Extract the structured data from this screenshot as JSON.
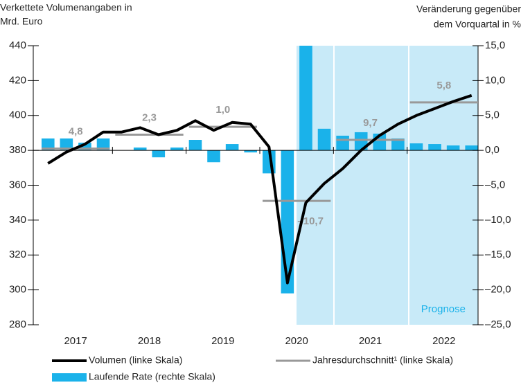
{
  "chart_data": {
    "type": "bar-line",
    "y_title_lines": [
      "Verkettete Volumenangaben in",
      "Mrd. Euro"
    ],
    "y2_title_lines": [
      "Veränderung gegenüber",
      "dem Vorquartal in %"
    ],
    "categories": [
      "2017",
      "2018",
      "2019",
      "2020",
      "2021",
      "2022"
    ],
    "forecast_label": "Prognose",
    "ylim": [
      280,
      440
    ],
    "yticks": [
      280,
      300,
      320,
      340,
      360,
      380,
      400,
      420,
      440
    ],
    "y2lim": [
      -25,
      15
    ],
    "y2ticks": [
      {
        "value": -25,
        "label": "–25,0"
      },
      {
        "value": -20,
        "label": "–20,0"
      },
      {
        "value": -15,
        "label": "–15,0"
      },
      {
        "value": -10,
        "label": "–10,0"
      },
      {
        "value": -5,
        "label": "–5,0"
      },
      {
        "value": 0,
        "label": "0,0"
      },
      {
        "value": 5,
        "label": "5,0"
      },
      {
        "value": 10,
        "label": "10,0"
      },
      {
        "value": 15,
        "label": "15,0"
      }
    ],
    "series": [
      {
        "name": "Volumen (linke Skala)",
        "type": "line",
        "color": "#000000",
        "values": [
          [
            372.5,
            379,
            383.5,
            390.5
          ],
          [
            390.5,
            393,
            389,
            391.5
          ],
          [
            397,
            391.5,
            396,
            395
          ],
          [
            382,
            304,
            350,
            361
          ],
          [
            369.5,
            380,
            388.5,
            395
          ],
          [
            400,
            404,
            408,
            411.5
          ]
        ]
      },
      {
        "name": "Jahresdurchschnitt¹ (linke Skala)",
        "type": "average",
        "color": "#999999",
        "values": [
          381,
          389,
          393.5,
          351,
          386,
          407.5
        ],
        "value_labels": [
          "4,8",
          "2,3",
          "1,0",
          "–10,7",
          "9,7",
          "5,8"
        ]
      },
      {
        "name": "Laufende Rate (rechte Skala)",
        "type": "bar",
        "axis": "y2",
        "color": "#1ab2ea",
        "values": [
          [
            1.7,
            1.7,
            1.1,
            1.7
          ],
          [
            0.0,
            0.4,
            -1.0,
            0.4
          ],
          [
            1.5,
            -1.7,
            0.9,
            -0.3
          ],
          [
            -3.3,
            -20.5,
            16,
            3.1
          ],
          [
            2.1,
            2.6,
            2.4,
            1.7
          ],
          [
            1.0,
            0.9,
            0.7,
            0.7
          ]
        ]
      }
    ]
  }
}
